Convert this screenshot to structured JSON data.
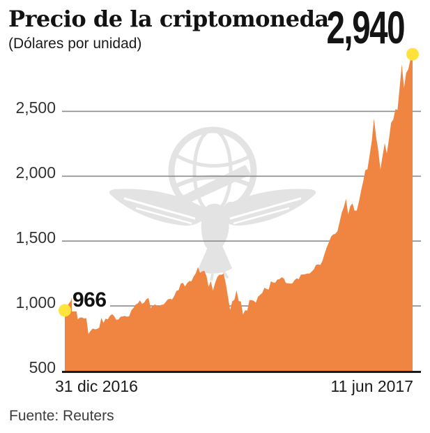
{
  "header": {
    "title": "Precio de la criptomoneda",
    "subtitle": "(Dólares por unidad)"
  },
  "footer": {
    "source": "Fuente: Reuters"
  },
  "watermark": {
    "name": "eagle-globe-newspaper-logo",
    "color": "#e3e3e3"
  },
  "chart_data": {
    "type": "area",
    "title": "Precio de la criptomoneda",
    "ylabel": "Dólares por unidad",
    "x_start_label": "31 dic 2016",
    "x_end_label": "11 jun 2017",
    "start_annotation": "966",
    "end_annotation": "2,940",
    "start_value": 966,
    "end_value": 2940,
    "ylim": [
      500,
      2980
    ],
    "y_ticks": [
      500,
      1000,
      1500,
      2000,
      2500
    ],
    "y_tick_labels": [
      "500",
      "1,000",
      "1,500",
      "2,000",
      "2,500"
    ],
    "grid": "horizontal-only",
    "legend": "none",
    "colors": {
      "area": "#F08542",
      "dot": "#FFE23C",
      "grid": "#8c8c8c",
      "axis": "#1a1a1a"
    },
    "x_unit": "daily, 31 dic 2016 - 11 jun 2017",
    "values": [
      966,
      998,
      1022,
      1045,
      1130,
      1010,
      898,
      910,
      912,
      903,
      907,
      784,
      808,
      826,
      820,
      823,
      832,
      909,
      870,
      902,
      897,
      924,
      937,
      922,
      893,
      897,
      917,
      920,
      923,
      917,
      921,
      966,
      985,
      1011,
      1020,
      1043,
      1016,
      1028,
      1052,
      1061,
      985,
      1001,
      1012,
      1001,
      997,
      1009,
      1011,
      1032,
      1051,
      1055,
      1050,
      1077,
      1117,
      1122,
      1172,
      1178,
      1150,
      1177,
      1192,
      1190,
      1226,
      1252,
      1300,
      1255,
      1267,
      1272,
      1231,
      1147,
      1192,
      1117,
      1177,
      1222,
      1241,
      1240,
      1250,
      1172,
      1071,
      970,
      1037,
      1048,
      1120,
      1038,
      1035,
      935,
      967,
      965,
      1045,
      1046,
      1040,
      1026,
      1071,
      1086,
      1101,
      1141,
      1130,
      1127,
      1190,
      1181,
      1180,
      1204,
      1206,
      1221,
      1213,
      1177,
      1175,
      1172,
      1174,
      1199,
      1213,
      1206,
      1241,
      1243,
      1245,
      1250,
      1249,
      1265,
      1282,
      1317,
      1321,
      1316,
      1347,
      1402,
      1452,
      1490,
      1534,
      1551,
      1556,
      1576,
      1647,
      1719,
      1762,
      1826,
      1704,
      1771,
      1790,
      1734,
      1735,
      1803,
      1888,
      1961,
      2046,
      2054,
      2163,
      2272,
      2445,
      2306,
      2202,
      2052,
      2155,
      2255,
      2175,
      2286,
      2412,
      2437,
      2516,
      2511,
      2687,
      2863,
      2678,
      2797,
      2823,
      2900,
      2940
    ]
  }
}
